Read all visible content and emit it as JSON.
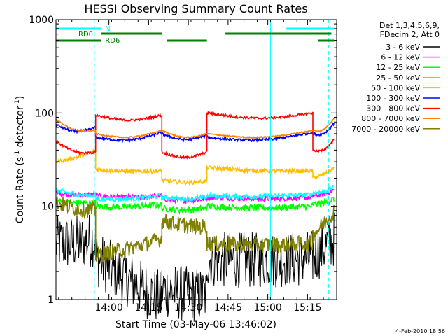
{
  "chart_data": {
    "type": "line",
    "title": "HESSI Observing Summary Count Rates",
    "xlabel": "Start Time (03-May-06 13:46:02)",
    "ylabel_main": "Count Rate (s",
    "ylabel_sup1": "-1",
    "ylabel_mid": " detector",
    "ylabel_sup2": "-1",
    "ylabel_end": ")",
    "yscale": "log",
    "ylim": [
      1,
      1000
    ],
    "xlim_minutes": [
      -6,
      100
    ],
    "xticks": [
      {
        "m": 14,
        "label": "14:00"
      },
      {
        "m": 29,
        "label": "14:15"
      },
      {
        "m": 44,
        "label": "14:30"
      },
      {
        "m": 59,
        "label": "14:45"
      },
      {
        "m": 74,
        "label": "15:00"
      },
      {
        "m": 89,
        "label": "15:15"
      }
    ],
    "yticks": [
      {
        "v": 1,
        "label": "1"
      },
      {
        "v": 10,
        "label": "10"
      },
      {
        "v": 100,
        "label": "100"
      },
      {
        "v": 1000,
        "label": "1000"
      }
    ],
    "legend_header": [
      "Det 1,3,4,5,6,9,",
      "FDecim 2, Att 0"
    ],
    "legend_placement": "right",
    "footer_date": "4-Feb-2010 18:56",
    "flag_bars": [
      {
        "label": "N",
        "color": "#00ffff",
        "segments": [
          [
            -6,
            11
          ],
          [
            81,
            99
          ]
        ]
      },
      {
        "label": "RD0",
        "color": "#007f00",
        "segments": [
          [
            11,
            34
          ],
          [
            58,
            98
          ]
        ]
      },
      {
        "label": "RD6",
        "color": "#007f00",
        "segments": [
          [
            -6,
            11
          ],
          [
            36,
            51
          ],
          [
            93,
            99
          ]
        ]
      }
    ],
    "vlines": [
      {
        "m": -6,
        "style": "solid",
        "color": "#00ffff"
      },
      {
        "m": 8.5,
        "style": "dashed",
        "color": "#00ffff"
      },
      {
        "m": 75,
        "style": "solid",
        "color": "#00ffff"
      },
      {
        "m": 97,
        "style": "dashed",
        "color": "#00ffff"
      }
    ],
    "segments": [
      [
        -6,
        9
      ],
      [
        9,
        34
      ],
      [
        34,
        51
      ],
      [
        51,
        91
      ],
      [
        91,
        99
      ]
    ],
    "series": [
      {
        "name": "3 - 6 keV",
        "color": "#000000",
        "noise": 0.7,
        "values": [
          [
            4,
            4.5
          ],
          [
            2.8,
            1
          ],
          [
            1.3,
            1.1
          ],
          [
            2.7,
            2.8
          ],
          [
            3,
            4.5
          ]
        ]
      },
      {
        "name": "6 - 12 keV",
        "color": "#ff00ff",
        "noise": 0.06,
        "values": [
          [
            14,
            13.5
          ],
          [
            13,
            13
          ],
          [
            12,
            12
          ],
          [
            12.5,
            12.5
          ],
          [
            13,
            15
          ]
        ]
      },
      {
        "name": "12 - 25 keV",
        "color": "#00ff00",
        "noise": 0.08,
        "values": [
          [
            11.5,
            11
          ],
          [
            10,
            10.5
          ],
          [
            9.5,
            9.5
          ],
          [
            10,
            10
          ],
          [
            10.5,
            12
          ]
        ]
      },
      {
        "name": "25 - 50 keV",
        "color": "#00ffff",
        "noise": 0.06,
        "values": [
          [
            15,
            13
          ],
          [
            12,
            13
          ],
          [
            12.5,
            12.5
          ],
          [
            13,
            13.5
          ],
          [
            14,
            16
          ]
        ]
      },
      {
        "name": "50 - 100 keV",
        "color": "#ffbf00",
        "noise": 0.05,
        "values": [
          [
            30,
            40
          ],
          [
            25,
            24
          ],
          [
            19,
            18.5
          ],
          [
            26,
            24
          ],
          [
            20,
            26
          ]
        ]
      },
      {
        "name": "100 - 300 keV",
        "color": "#0000ff",
        "noise": 0.03,
        "values": [
          [
            75,
            70
          ],
          [
            55,
            62
          ],
          [
            60,
            58
          ],
          [
            55,
            62
          ],
          [
            60,
            78
          ]
        ]
      },
      {
        "name": "300 - 800 keV",
        "color": "#ff0000",
        "noise": 0.03,
        "values": [
          [
            50,
            38
          ],
          [
            95,
            95
          ],
          [
            38,
            38
          ],
          [
            100,
            100
          ],
          [
            40,
            52
          ]
        ]
      },
      {
        "name": "800 - 7000 keV",
        "color": "#ff7f00",
        "noise": 0.015,
        "values": [
          [
            85,
            65
          ],
          [
            60,
            65
          ],
          [
            65,
            60
          ],
          [
            60,
            65
          ],
          [
            65,
            88
          ]
        ]
      },
      {
        "name": "7000 - 20000 keV",
        "color": "#7f7f00",
        "noise": 0.2,
        "values": [
          [
            11,
            9
          ],
          [
            3,
            4.5
          ],
          [
            7,
            6
          ],
          [
            4,
            4
          ],
          [
            5,
            9
          ]
        ]
      }
    ]
  }
}
